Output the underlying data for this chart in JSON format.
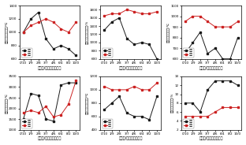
{
  "x_labels": [
    "0/10",
    "1/9",
    "2/8",
    "3/7",
    "4/6",
    "6/4",
    "8/2",
    "10/0"
  ],
  "x_vals": [
    0,
    1,
    2,
    3,
    4,
    5,
    6,
    7
  ],
  "xlabel": "兰炭粉/生物质掺混比例",
  "legend_water": "水冷",
  "legend_wind": "风冷",
  "color_water": "#1a1a1a",
  "color_wind": "#cc2222",
  "plots": [
    {
      "ylabel": "燃烧室出口平均温度/℃",
      "ylim": [
        600,
        1400
      ],
      "yticks": [
        600,
        800,
        1000,
        1200,
        1400
      ],
      "water": [
        1000,
        1200,
        1300,
        900,
        750,
        800,
        750,
        650
      ],
      "wind": [
        1000,
        1100,
        1150,
        1200,
        1150,
        1050,
        1000,
        1150
      ]
    },
    {
      "ylabel": "燃烧室出口温度标准差/%",
      "ylim": [
        600,
        1900
      ],
      "yticks": [
        600,
        800,
        1000,
        1200,
        1400,
        1600,
        1800
      ],
      "water": [
        1300,
        1500,
        1600,
        1100,
        950,
        1000,
        950,
        600
      ],
      "wind": [
        1650,
        1700,
        1700,
        1800,
        1750,
        1700,
        1700,
        1750
      ]
    },
    {
      "ylabel": "燃烧尾气平均温度/℃",
      "ylim": [
        600,
        1100
      ],
      "yticks": [
        600,
        700,
        800,
        900,
        1000,
        1100
      ],
      "water": [
        650,
        750,
        850,
        650,
        700,
        600,
        600,
        800
      ],
      "wind": [
        950,
        1000,
        1000,
        950,
        900,
        900,
        900,
        950
      ]
    },
    {
      "ylabel": "燃烧化渣达高温区/℃",
      "ylim": [
        1000,
        3500
      ],
      "yticks": [
        1000,
        1500,
        2000,
        2500,
        3000,
        3500
      ],
      "water": [
        1500,
        2700,
        2600,
        1500,
        1400,
        3100,
        3200,
        3200
      ],
      "wind": [
        1800,
        1900,
        1800,
        2100,
        1600,
        1700,
        2200,
        3300
      ]
    },
    {
      "ylabel": "燃烧室出口平均温度/℃",
      "ylim": [
        400,
        1200
      ],
      "yticks": [
        400,
        600,
        800,
        1000,
        1200
      ],
      "water": [
        700,
        800,
        900,
        650,
        600,
        600,
        550,
        900
      ],
      "wind": [
        1050,
        1000,
        1000,
        1000,
        1050,
        1000,
        1000,
        1100
      ]
    },
    {
      "ylabel": "平均氮氧化物含量/%",
      "ylim": [
        2,
        14
      ],
      "yticks": [
        2,
        4,
        6,
        8,
        10,
        12,
        14
      ],
      "water": [
        8,
        8,
        6,
        11,
        13,
        13,
        13,
        12
      ],
      "wind": [
        5,
        5,
        5,
        5,
        6,
        7,
        7,
        7
      ]
    }
  ]
}
